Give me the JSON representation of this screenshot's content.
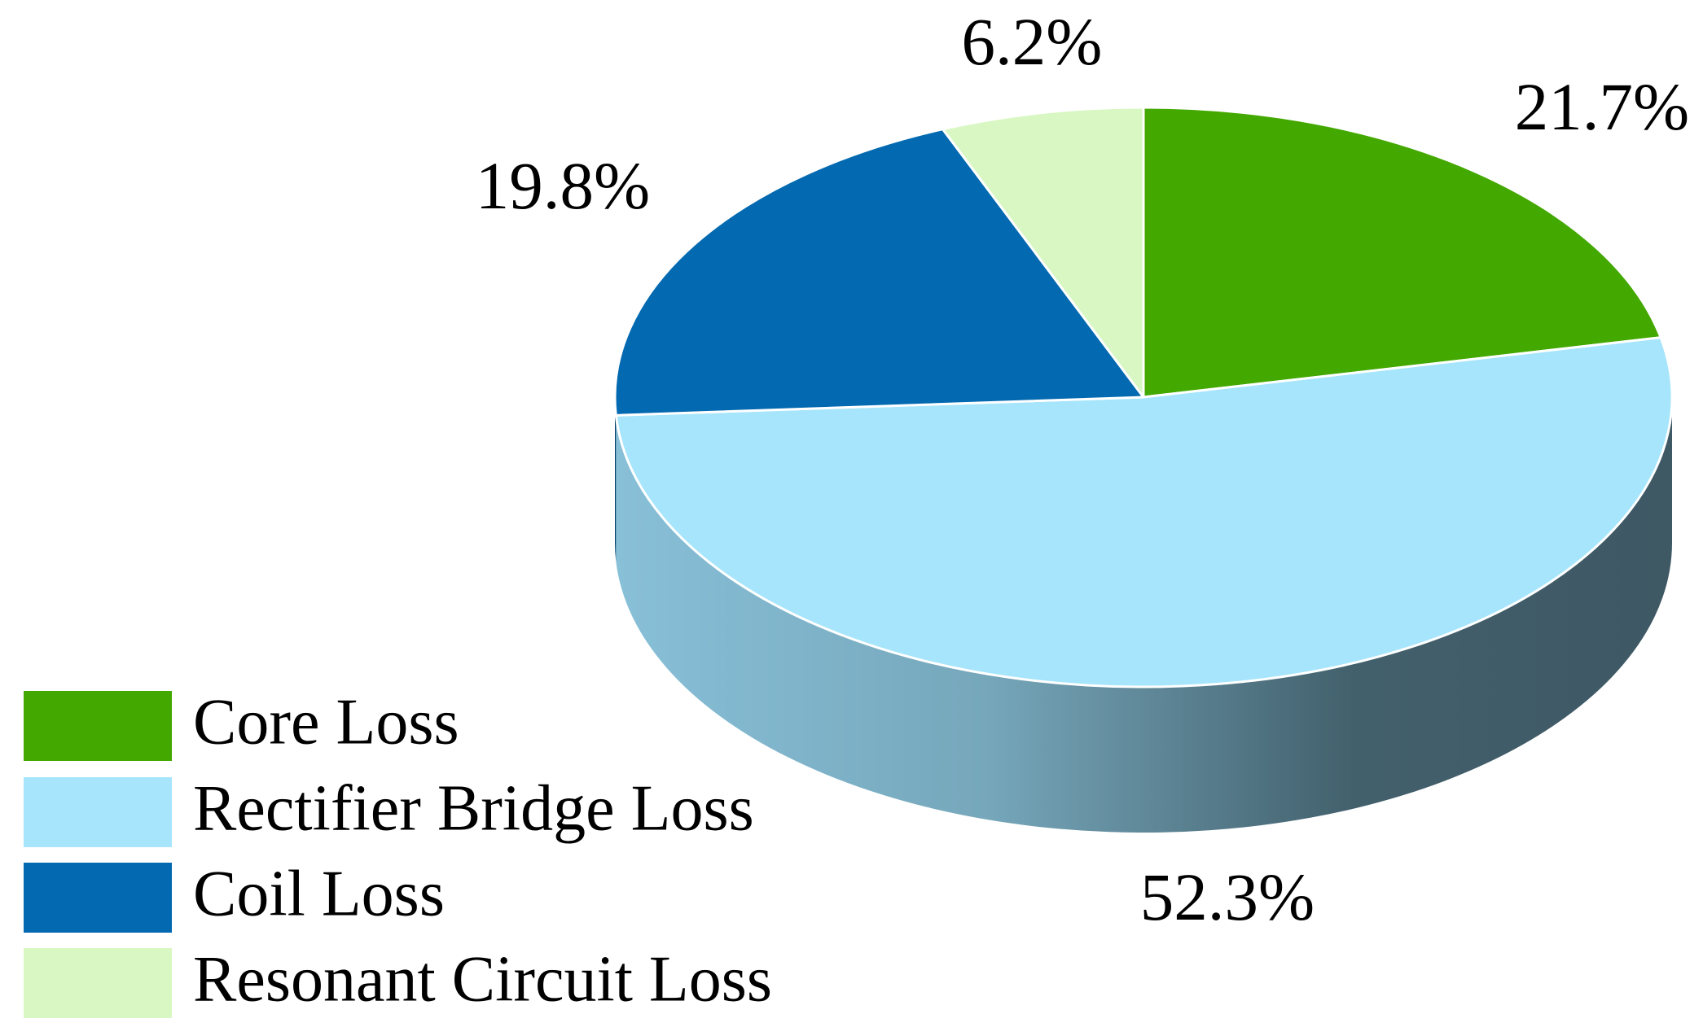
{
  "chart_data": {
    "type": "pie",
    "categories": [
      "Core Loss",
      "Rectifier Bridge Loss",
      "Coil Loss",
      "Resonant Circuit Loss"
    ],
    "values": [
      21.7,
      52.3,
      19.8,
      6.2
    ],
    "value_labels": [
      "21.7%",
      "52.3%",
      "19.8%",
      "6.2%"
    ],
    "colors": [
      "#43a800",
      "#a6e5fb",
      "#0369b0",
      "#d8f7c2"
    ],
    "legend": "bottom-left"
  }
}
